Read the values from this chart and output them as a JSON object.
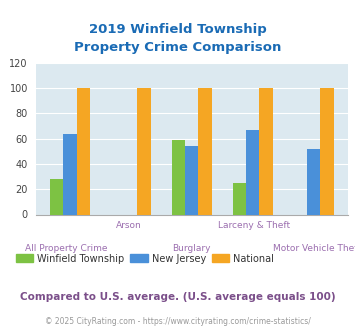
{
  "title": "2019 Winfield Township\nProperty Crime Comparison",
  "categories": [
    "All Property Crime",
    "Arson",
    "Burglary",
    "Larceny & Theft",
    "Motor Vehicle Theft"
  ],
  "winfield": [
    28,
    0,
    59,
    25,
    0
  ],
  "new_jersey": [
    64,
    0,
    54,
    67,
    52
  ],
  "national": [
    100,
    100,
    100,
    100,
    100
  ],
  "colors": {
    "winfield": "#7DC243",
    "new_jersey": "#4A90D9",
    "national": "#F5A623"
  },
  "ylim": [
    0,
    120
  ],
  "yticks": [
    0,
    20,
    40,
    60,
    80,
    100,
    120
  ],
  "title_color": "#1A6BB5",
  "xlabel_color": "#9B6EAF",
  "legend_labels": [
    "Winfield Township",
    "New Jersey",
    "National"
  ],
  "footnote1": "Compared to U.S. average. (U.S. average equals 100)",
  "footnote2": "© 2025 CityRating.com - https://www.cityrating.com/crime-statistics/",
  "background_color": "#DCE9F0",
  "fig_background": "#FFFFFF",
  "bar_width": 0.22
}
